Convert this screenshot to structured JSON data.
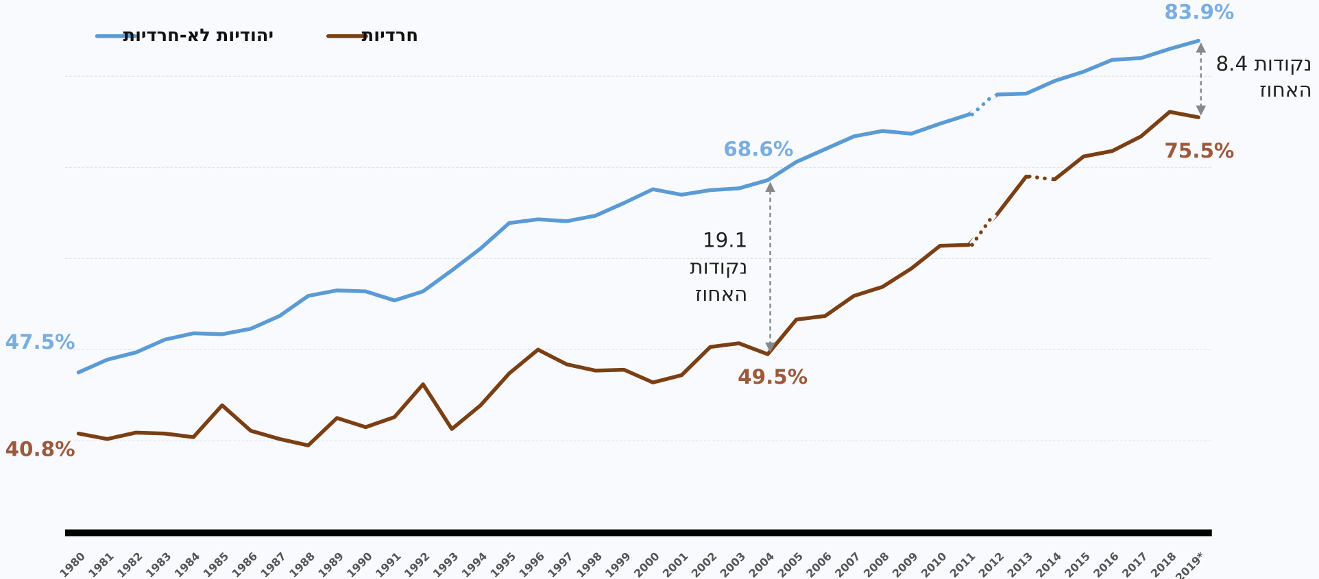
{
  "chart_data": {
    "type": "line",
    "categories": [
      "1980",
      "1981",
      "1982",
      "1983",
      "1984",
      "1985",
      "1986",
      "1987",
      "1988",
      "1989",
      "1990",
      "1991",
      "1992",
      "1993",
      "1994",
      "1995",
      "1996",
      "1997",
      "1998",
      "1999",
      "2000",
      "2001",
      "2002",
      "2003",
      "2004",
      "2005",
      "2006",
      "2007",
      "2008",
      "2009",
      "2010",
      "2011",
      "2012",
      "2013",
      "2014",
      "2015",
      "2016",
      "2017",
      "2018",
      "2019*"
    ],
    "series": [
      {
        "name": "יהודיות לא-חרדיות",
        "color": "#5b9bd5",
        "label_color": "#7aaee0",
        "values": [
          47.5,
          48.9,
          49.7,
          51.1,
          51.8,
          51.7,
          52.3,
          53.7,
          55.9,
          56.5,
          56.4,
          55.4,
          56.4,
          58.7,
          61.1,
          63.9,
          64.3,
          64.1,
          64.7,
          66.1,
          67.6,
          67.0,
          67.5,
          67.7,
          68.6,
          70.6,
          72.0,
          73.4,
          74.0,
          73.7,
          74.8,
          75.8,
          78.0,
          78.1,
          79.5,
          80.5,
          81.8,
          82.0,
          83.0,
          83.9
        ],
        "value_labels": [
          "47.5%",
          null,
          null,
          null,
          null,
          null,
          null,
          null,
          null,
          null,
          null,
          null,
          null,
          null,
          null,
          null,
          null,
          null,
          null,
          null,
          null,
          null,
          null,
          null,
          "68.6%",
          null,
          null,
          null,
          null,
          null,
          null,
          null,
          null,
          null,
          null,
          null,
          null,
          null,
          null,
          "83.9%"
        ],
        "dotted_after": [
          31
        ]
      },
      {
        "name": "חרדיות",
        "color": "#7b3f14",
        "label_color": "#9c5a3c",
        "values": [
          40.8,
          40.2,
          40.9,
          40.8,
          40.4,
          43.9,
          41.1,
          40.2,
          39.5,
          42.5,
          41.5,
          42.6,
          46.2,
          41.3,
          43.9,
          47.4,
          50.0,
          48.4,
          47.7,
          47.8,
          46.4,
          47.2,
          50.3,
          50.7,
          49.5,
          53.3,
          53.7,
          55.9,
          56.9,
          58.9,
          61.4,
          61.5,
          64.9,
          69.0,
          68.7,
          71.2,
          71.8,
          73.4,
          76.1,
          75.5
        ],
        "value_labels": [
          "40.8%",
          null,
          null,
          null,
          null,
          null,
          null,
          null,
          null,
          null,
          null,
          null,
          null,
          null,
          null,
          null,
          null,
          null,
          null,
          null,
          null,
          null,
          null,
          null,
          "49.5%",
          null,
          null,
          null,
          null,
          null,
          null,
          null,
          null,
          null,
          null,
          null,
          null,
          null,
          null,
          "75.5%"
        ],
        "dotted_after": [
          31,
          33
        ]
      }
    ],
    "ylim": [
      30,
      88
    ],
    "gridlines": [
      40,
      50,
      60,
      70,
      80
    ],
    "grid": true,
    "legend": "top-left",
    "annotations": [
      {
        "lines": [
          "19.1",
          "נקודות",
          "האחוז"
        ],
        "at": 24
      },
      {
        "lines": [
          "8.4 נקודות",
          "האחוז"
        ],
        "at": 39
      }
    ]
  }
}
